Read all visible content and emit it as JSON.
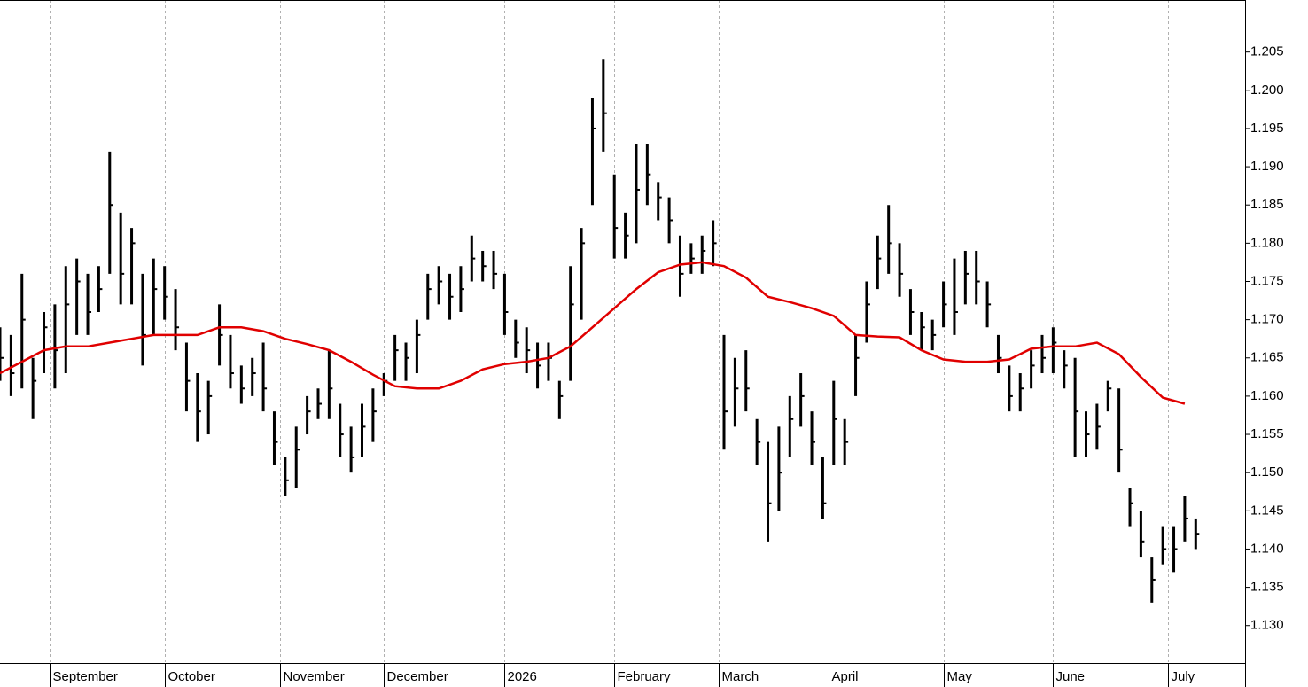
{
  "chart_data": {
    "type": "hlc",
    "color": "#000000",
    "x": [
      0,
      2,
      4,
      6,
      8,
      10,
      12,
      14,
      16,
      18,
      20,
      22,
      24,
      26,
      28,
      30,
      32,
      34,
      36,
      38,
      40,
      42,
      44,
      46,
      48,
      50,
      52,
      54,
      56,
      58,
      60,
      62,
      64,
      66,
      68,
      70,
      72,
      74,
      76,
      78,
      80,
      82,
      84,
      86,
      88,
      90,
      92,
      94,
      96,
      98,
      100,
      102,
      104,
      106,
      108,
      110,
      112,
      114,
      116,
      118,
      120,
      122,
      124,
      126,
      128,
      130,
      132,
      134,
      136,
      138,
      140,
      142,
      144,
      146,
      148,
      150,
      152,
      154,
      156,
      158,
      160,
      162,
      164,
      166,
      168,
      170,
      172,
      174,
      176,
      178,
      180,
      182,
      184,
      186,
      188,
      190,
      192,
      194,
      196,
      198,
      200,
      202,
      204,
      206,
      208,
      210,
      212,
      214,
      216,
      218
    ],
    "high": [
      1.169,
      1.168,
      1.176,
      1.165,
      1.171,
      1.172,
      1.177,
      1.178,
      1.176,
      1.177,
      1.192,
      1.184,
      1.182,
      1.176,
      1.178,
      1.177,
      1.174,
      1.167,
      1.163,
      1.162,
      1.172,
      1.168,
      1.164,
      1.165,
      1.167,
      1.158,
      1.152,
      1.156,
      1.16,
      1.161,
      1.166,
      1.159,
      1.156,
      1.159,
      1.161,
      1.163,
      1.168,
      1.167,
      1.17,
      1.176,
      1.177,
      1.176,
      1.177,
      1.181,
      1.179,
      1.179,
      1.176,
      1.17,
      1.169,
      1.167,
      1.167,
      1.162,
      1.177,
      1.182,
      1.199,
      1.204,
      1.189,
      1.184,
      1.193,
      1.193,
      1.188,
      1.186,
      1.181,
      1.18,
      1.181,
      1.183,
      1.168,
      1.165,
      1.166,
      1.157,
      1.154,
      1.156,
      1.16,
      1.163,
      1.158,
      1.152,
      1.162,
      1.157,
      1.168,
      1.175,
      1.181,
      1.185,
      1.18,
      1.174,
      1.171,
      1.17,
      1.175,
      1.178,
      1.179,
      1.179,
      1.175,
      1.168,
      1.164,
      1.163,
      1.166,
      1.168,
      1.169,
      1.166,
      1.165,
      1.158,
      1.159,
      1.162,
      1.161,
      1.148,
      1.145,
      1.139,
      1.143,
      1.143,
      1.147,
      1.144
    ],
    "low": [
      1.162,
      1.16,
      1.161,
      1.157,
      1.163,
      1.161,
      1.163,
      1.168,
      1.168,
      1.171,
      1.176,
      1.172,
      1.172,
      1.164,
      1.168,
      1.17,
      1.166,
      1.158,
      1.154,
      1.155,
      1.164,
      1.161,
      1.159,
      1.16,
      1.158,
      1.151,
      1.147,
      1.148,
      1.155,
      1.157,
      1.157,
      1.152,
      1.15,
      1.152,
      1.154,
      1.16,
      1.162,
      1.162,
      1.163,
      1.17,
      1.172,
      1.17,
      1.171,
      1.175,
      1.175,
      1.174,
      1.168,
      1.165,
      1.163,
      1.161,
      1.162,
      1.157,
      1.162,
      1.17,
      1.185,
      1.192,
      1.178,
      1.178,
      1.18,
      1.185,
      1.183,
      1.18,
      1.173,
      1.176,
      1.176,
      1.177,
      1.153,
      1.156,
      1.158,
      1.151,
      1.141,
      1.145,
      1.152,
      1.156,
      1.151,
      1.144,
      1.151,
      1.151,
      1.16,
      1.167,
      1.174,
      1.176,
      1.173,
      1.168,
      1.166,
      1.166,
      1.169,
      1.168,
      1.172,
      1.172,
      1.169,
      1.163,
      1.158,
      1.158,
      1.161,
      1.163,
      1.163,
      1.161,
      1.152,
      1.152,
      1.153,
      1.158,
      1.15,
      1.143,
      1.139,
      1.133,
      1.138,
      1.137,
      1.141,
      1.14
    ],
    "close": [
      1.165,
      1.163,
      1.17,
      1.162,
      1.169,
      1.166,
      1.172,
      1.175,
      1.171,
      1.174,
      1.185,
      1.176,
      1.18,
      1.168,
      1.174,
      1.173,
      1.169,
      1.162,
      1.158,
      1.16,
      1.168,
      1.163,
      1.161,
      1.163,
      1.161,
      1.154,
      1.149,
      1.153,
      1.158,
      1.159,
      1.161,
      1.155,
      1.152,
      1.156,
      1.158,
      1.162,
      1.166,
      1.165,
      1.168,
      1.174,
      1.175,
      1.173,
      1.174,
      1.178,
      1.177,
      1.176,
      1.171,
      1.167,
      1.166,
      1.164,
      1.165,
      1.16,
      1.172,
      1.18,
      1.195,
      1.197,
      1.182,
      1.181,
      1.187,
      1.189,
      1.186,
      1.183,
      1.176,
      1.178,
      1.179,
      1.18,
      1.158,
      1.161,
      1.161,
      1.154,
      1.146,
      1.15,
      1.157,
      1.16,
      1.154,
      1.146,
      1.157,
      1.154,
      1.165,
      1.172,
      1.178,
      1.18,
      1.176,
      1.171,
      1.169,
      1.168,
      1.172,
      1.171,
      1.176,
      1.175,
      1.172,
      1.165,
      1.16,
      1.161,
      1.164,
      1.165,
      1.167,
      1.164,
      1.158,
      1.155,
      1.156,
      1.161,
      1.153,
      1.146,
      1.141,
      1.136,
      1.14,
      1.14,
      1.144,
      1.142
    ],
    "ma": {
      "color": "#e00000",
      "x": [
        0,
        4,
        8,
        12,
        16,
        20,
        24,
        28,
        32,
        36,
        40,
        44,
        48,
        52,
        56,
        60,
        64,
        68,
        72,
        76,
        80,
        84,
        88,
        92,
        96,
        100,
        104,
        108,
        112,
        116,
        120,
        124,
        128,
        132,
        136,
        140,
        144,
        148,
        152,
        156,
        160,
        164,
        168,
        172,
        176,
        180,
        184,
        188,
        192,
        196,
        200,
        204,
        208,
        212,
        216
      ],
      "values": [
        1.163,
        1.1645,
        1.166,
        1.1665,
        1.1665,
        1.167,
        1.1675,
        1.168,
        1.168,
        1.168,
        1.169,
        1.169,
        1.1685,
        1.1675,
        1.1668,
        1.166,
        1.1645,
        1.1628,
        1.1613,
        1.161,
        1.161,
        1.162,
        1.1635,
        1.1642,
        1.1645,
        1.165,
        1.1665,
        1.169,
        1.1715,
        1.174,
        1.1762,
        1.1772,
        1.1775,
        1.177,
        1.1755,
        1.173,
        1.1723,
        1.1715,
        1.1705,
        1.168,
        1.1678,
        1.1677,
        1.166,
        1.1648,
        1.1645,
        1.1645,
        1.1648,
        1.1662,
        1.1665,
        1.1665,
        1.167,
        1.1655,
        1.1625,
        1.1598,
        1.159
      ]
    },
    "xlim": [
      0,
      227
    ],
    "xticks": [
      {
        "value": 9,
        "label": "September"
      },
      {
        "value": 30,
        "label": "October"
      },
      {
        "value": 51,
        "label": "November"
      },
      {
        "value": 70,
        "label": "December"
      },
      {
        "value": 92,
        "label": "2026"
      },
      {
        "value": 112,
        "label": "February"
      },
      {
        "value": 131,
        "label": "March"
      },
      {
        "value": 151,
        "label": "April"
      },
      {
        "value": 172,
        "label": "May"
      },
      {
        "value": 192,
        "label": "June"
      },
      {
        "value": 213,
        "label": "July"
      }
    ],
    "ylim": [
      1.1251,
      1.2118
    ],
    "yticks": [
      {
        "value": 1.13,
        "label": "1.130"
      },
      1.135,
      {
        "value": 1.14,
        "label": "1.140"
      },
      1.145,
      {
        "value": 1.15,
        "label": "1.150"
      },
      1.155,
      {
        "value": 1.16,
        "label": "1.160"
      },
      1.165,
      {
        "value": 1.17,
        "label": "1.170"
      },
      1.175,
      {
        "value": 1.18,
        "label": "1.180"
      },
      1.185,
      {
        "value": 1.19,
        "label": "1.190"
      },
      1.195,
      {
        "value": 1.2,
        "label": "1.200"
      },
      1.205
    ],
    "grid": true
  }
}
